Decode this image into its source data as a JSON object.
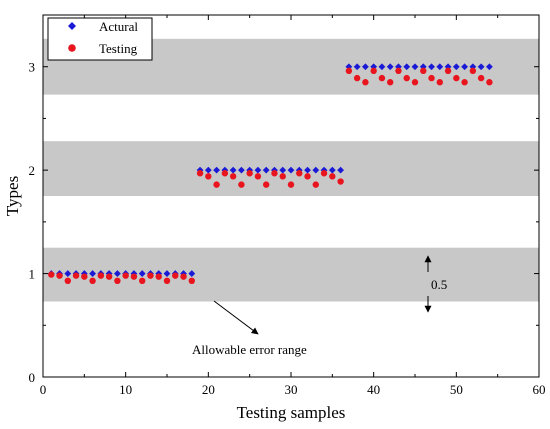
{
  "chart_data": {
    "type": "scatter",
    "xlabel": "Testing samples",
    "ylabel": "Types",
    "xlim": [
      0,
      60
    ],
    "ylim": [
      0,
      3.5
    ],
    "x_ticks": [
      0,
      10,
      20,
      30,
      40,
      50,
      60
    ],
    "y_ticks": [
      0,
      1,
      2,
      3
    ],
    "grid": false,
    "legend": {
      "position": "top-left",
      "entries": [
        {
          "label": "Actural",
          "marker": "diamond",
          "color": "#1a1ad6"
        },
        {
          "label": "Testing",
          "marker": "circle",
          "color": "#e8141e"
        }
      ]
    },
    "bands": [
      {
        "y_from": 0.73,
        "y_to": 1.25,
        "color": "#c8c8c8"
      },
      {
        "y_from": 1.75,
        "y_to": 2.28,
        "color": "#c8c8c8"
      },
      {
        "y_from": 2.73,
        "y_to": 3.27,
        "color": "#c8c8c8"
      }
    ],
    "series": [
      {
        "name": "Actural",
        "color": "#1a1ad6",
        "x": [
          1,
          2,
          3,
          4,
          5,
          6,
          7,
          8,
          9,
          10,
          11,
          12,
          13,
          14,
          15,
          16,
          17,
          18,
          19,
          20,
          21,
          22,
          23,
          24,
          25,
          26,
          27,
          28,
          29,
          30,
          31,
          32,
          33,
          34,
          35,
          36,
          37,
          38,
          39,
          40,
          41,
          42,
          43,
          44,
          45,
          46,
          47,
          48,
          49,
          50,
          51,
          52,
          53,
          54
        ],
        "y": [
          1,
          1,
          1,
          1,
          1,
          1,
          1,
          1,
          1,
          1,
          1,
          1,
          1,
          1,
          1,
          1,
          1,
          1,
          2,
          2,
          2,
          2,
          2,
          2,
          2,
          2,
          2,
          2,
          2,
          2,
          2,
          2,
          2,
          2,
          2,
          2,
          3,
          3,
          3,
          3,
          3,
          3,
          3,
          3,
          3,
          3,
          3,
          3,
          3,
          3,
          3,
          3,
          3,
          3
        ]
      },
      {
        "name": "Testing",
        "color": "#e8141e",
        "x": [
          1,
          2,
          3,
          4,
          5,
          6,
          7,
          8,
          9,
          10,
          11,
          12,
          13,
          14,
          15,
          16,
          17,
          18,
          19,
          20,
          21,
          22,
          23,
          24,
          25,
          26,
          27,
          28,
          29,
          30,
          31,
          32,
          33,
          34,
          35,
          36,
          37,
          38,
          39,
          40,
          41,
          42,
          43,
          44,
          45,
          46,
          47,
          48,
          49,
          50,
          51,
          52,
          53,
          54
        ],
        "y": [
          0.99,
          0.98,
          0.93,
          0.98,
          0.97,
          0.93,
          0.98,
          0.97,
          0.93,
          0.98,
          0.97,
          0.93,
          0.98,
          0.97,
          0.93,
          0.98,
          0.97,
          0.93,
          1.97,
          1.94,
          1.86,
          1.97,
          1.94,
          1.86,
          1.97,
          1.94,
          1.86,
          1.97,
          1.94,
          1.86,
          1.97,
          1.94,
          1.86,
          1.97,
          1.94,
          1.89,
          2.96,
          2.89,
          2.85,
          2.96,
          2.89,
          2.85,
          2.96,
          2.89,
          2.85,
          2.96,
          2.89,
          2.85,
          2.96,
          2.89,
          2.85,
          2.96,
          2.89,
          2.85
        ]
      }
    ],
    "annotations": [
      {
        "id": "allowable-error",
        "text": "Allowable error range",
        "arrow_to": [
          26,
          0.5
        ]
      },
      {
        "id": "band-width",
        "text": "0.5",
        "x": 47,
        "y": 1.0
      }
    ]
  }
}
